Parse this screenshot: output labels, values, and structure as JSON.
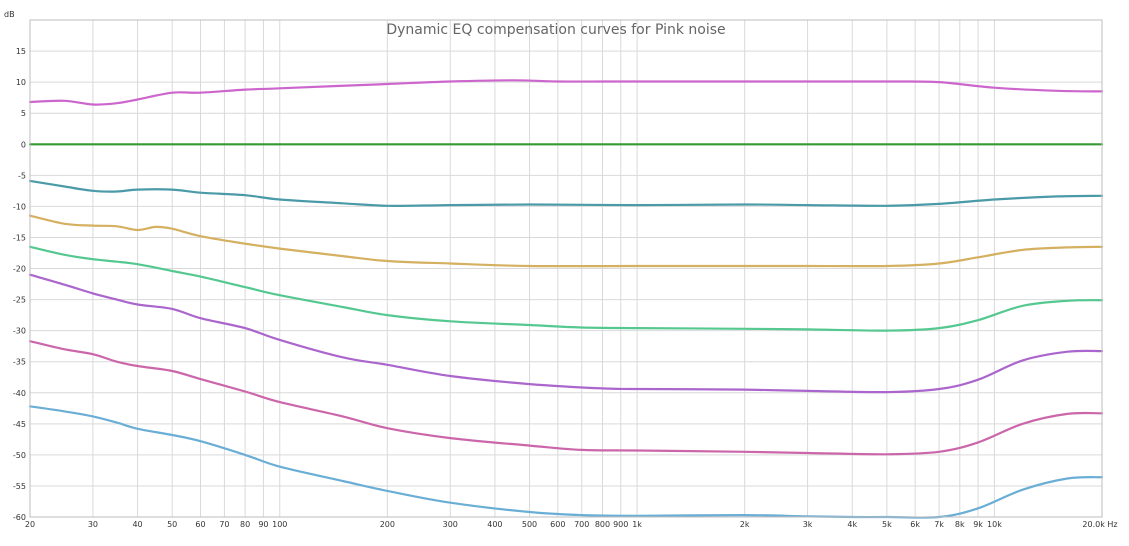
{
  "chart_data": {
    "type": "line",
    "title": "Dynamic EQ compensation curves for Pink noise",
    "xscale": "log",
    "xlim": [
      20,
      20000
    ],
    "ylim": [
      -60,
      20
    ],
    "y_unit_label": "dB",
    "x_ticks": [
      20,
      30,
      40,
      50,
      60,
      70,
      80,
      90,
      100,
      200,
      300,
      400,
      500,
      600,
      700,
      800,
      900,
      1000,
      2000,
      3000,
      4000,
      5000,
      6000,
      7000,
      8000,
      9000,
      10000,
      20000
    ],
    "x_tick_labels": [
      "20",
      "30",
      "40",
      "50",
      "60",
      "70",
      "80",
      "90",
      "100",
      "200",
      "300",
      "400",
      "500",
      "600",
      "700",
      "800",
      "900",
      "1k",
      "2k",
      "3k",
      "4k",
      "5k",
      "6k",
      "7k",
      "8k",
      "9k",
      "10k",
      "20.0k Hz"
    ],
    "y_ticks": [
      15,
      10,
      5,
      0,
      -5,
      -10,
      -15,
      -20,
      -25,
      -30,
      -35,
      -40,
      -45,
      -50,
      -55,
      -60
    ],
    "y_tick_labels": [
      "15",
      "10",
      "5",
      "0",
      "-5",
      "-10",
      "-15",
      "-20",
      "-25",
      "-30",
      "-35",
      "-40",
      "-45",
      "-50",
      "-55",
      "-60"
    ],
    "y_top_label": "dB",
    "grid": true,
    "legend": "none",
    "series": [
      {
        "color": "#cc66cc",
        "x": [
          20,
          25,
          30,
          35,
          40,
          50,
          60,
          80,
          100,
          200,
          300,
          450,
          600,
          800,
          1000,
          2000,
          3000,
          5000,
          7000,
          10000,
          15000,
          20000
        ],
        "y": [
          6.8,
          7.0,
          6.4,
          6.6,
          7.2,
          8.3,
          8.3,
          8.8,
          9.0,
          9.7,
          10.1,
          10.3,
          10.1,
          10.1,
          10.1,
          10.1,
          10.1,
          10.1,
          10.0,
          9.1,
          8.6,
          8.5
        ]
      },
      {
        "color": "#339933",
        "x": [
          20,
          20000
        ],
        "y": [
          0,
          0
        ]
      },
      {
        "color": "#4a9aa8",
        "x": [
          20,
          25,
          30,
          35,
          40,
          50,
          60,
          80,
          100,
          150,
          200,
          300,
          500,
          1000,
          2000,
          3000,
          5000,
          7000,
          10000,
          15000,
          20000
        ],
        "y": [
          -5.9,
          -6.8,
          -7.5,
          -7.6,
          -7.3,
          -7.3,
          -7.8,
          -8.2,
          -8.9,
          -9.5,
          -9.9,
          -9.8,
          -9.7,
          -9.8,
          -9.7,
          -9.8,
          -9.9,
          -9.6,
          -8.9,
          -8.4,
          -8.3
        ]
      },
      {
        "color": "#d4b060",
        "x": [
          20,
          25,
          30,
          35,
          40,
          45,
          50,
          60,
          80,
          100,
          150,
          200,
          300,
          500,
          1000,
          2000,
          3000,
          5000,
          7000,
          9000,
          12000,
          16000,
          20000
        ],
        "y": [
          -11.5,
          -12.8,
          -13.1,
          -13.2,
          -13.8,
          -13.3,
          -13.6,
          -14.8,
          -16.0,
          -16.8,
          -18.0,
          -18.8,
          -19.2,
          -19.6,
          -19.6,
          -19.6,
          -19.6,
          -19.6,
          -19.2,
          -18.2,
          -17.0,
          -16.6,
          -16.5
        ]
      },
      {
        "color": "#55c890",
        "x": [
          20,
          25,
          30,
          35,
          40,
          50,
          60,
          80,
          100,
          150,
          200,
          300,
          500,
          700,
          1000,
          2000,
          3000,
          5000,
          7000,
          9000,
          12000,
          16000,
          20000
        ],
        "y": [
          -16.5,
          -17.8,
          -18.5,
          -18.9,
          -19.3,
          -20.4,
          -21.3,
          -23.0,
          -24.3,
          -26.2,
          -27.5,
          -28.5,
          -29.1,
          -29.5,
          -29.6,
          -29.7,
          -29.8,
          -30.0,
          -29.6,
          -28.3,
          -26.0,
          -25.2,
          -25.1
        ]
      },
      {
        "color": "#aa66cc",
        "x": [
          20,
          25,
          30,
          35,
          40,
          50,
          60,
          80,
          100,
          150,
          200,
          300,
          500,
          800,
          1000,
          2000,
          3000,
          5000,
          7000,
          9000,
          12000,
          16000,
          20000
        ],
        "y": [
          -21.0,
          -22.6,
          -24.0,
          -25.0,
          -25.8,
          -26.5,
          -28.0,
          -29.6,
          -31.5,
          -34.3,
          -35.5,
          -37.3,
          -38.6,
          -39.3,
          -39.4,
          -39.5,
          -39.7,
          -39.9,
          -39.4,
          -37.9,
          -34.8,
          -33.4,
          -33.3
        ]
      },
      {
        "color": "#cc66aa",
        "x": [
          20,
          25,
          30,
          35,
          40,
          50,
          60,
          80,
          100,
          150,
          200,
          300,
          500,
          700,
          1000,
          2000,
          3000,
          5000,
          7000,
          9000,
          12000,
          16000,
          20000
        ],
        "y": [
          -31.7,
          -33.0,
          -33.8,
          -35.0,
          -35.7,
          -36.5,
          -37.8,
          -39.8,
          -41.5,
          -43.8,
          -45.7,
          -47.3,
          -48.5,
          -49.2,
          -49.3,
          -49.5,
          -49.7,
          -49.9,
          -49.5,
          -48.0,
          -45.0,
          -43.4,
          -43.3
        ]
      },
      {
        "color": "#6aaed6",
        "x": [
          20,
          25,
          30,
          35,
          40,
          50,
          60,
          80,
          100,
          150,
          200,
          300,
          500,
          700,
          1000,
          2000,
          3000,
          4000,
          5000,
          7000,
          9000,
          12000,
          16000,
          20000
        ],
        "y": [
          -42.2,
          -43.0,
          -43.8,
          -44.8,
          -45.8,
          -46.8,
          -47.8,
          -50.0,
          -51.9,
          -54.2,
          -55.8,
          -57.7,
          -59.2,
          -59.7,
          -59.8,
          -59.7,
          -59.9,
          -60.0,
          -60.0,
          -60.0,
          -58.6,
          -55.6,
          -53.8,
          -53.6
        ]
      }
    ]
  }
}
